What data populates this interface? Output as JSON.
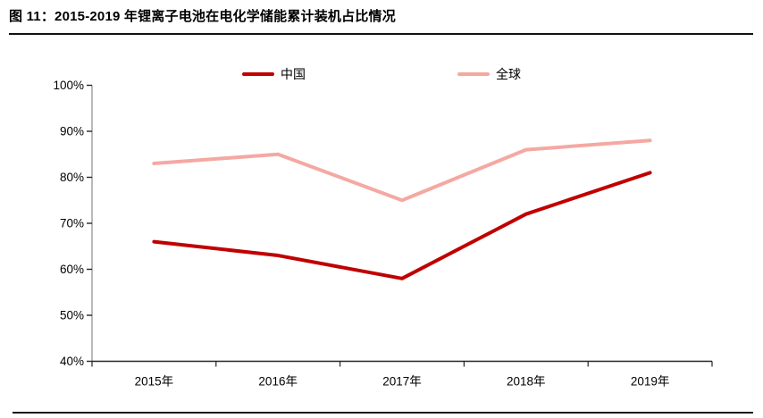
{
  "header": {
    "title": "图 11：2015-2019 年锂离子电池在电化学储能累计装机占比情况"
  },
  "chart_data": {
    "type": "line",
    "title": "图 11：2015-2019 年锂离子电池在电化学储能累计装机占比情况",
    "categories": [
      "2015年",
      "2016年",
      "2017年",
      "2018年",
      "2019年"
    ],
    "series": [
      {
        "name": "中国",
        "color": "#c00000",
        "values": [
          66,
          63,
          58,
          72,
          81
        ]
      },
      {
        "name": "全球",
        "color": "#f5a8a2",
        "values": [
          83,
          85,
          75,
          86,
          88
        ]
      }
    ],
    "ylim": [
      40,
      100
    ],
    "y_tick_step": 10,
    "y_tick_labels": [
      "40%",
      "50%",
      "60%",
      "70%",
      "80%",
      "90%",
      "100%"
    ],
    "y_tick_suffix": "%",
    "grid": false,
    "legend_position": "top-center",
    "axis_color": "#8c8c8c",
    "baseline_color": "#262626",
    "tick_color": "#262626",
    "label_color": "#000000"
  }
}
